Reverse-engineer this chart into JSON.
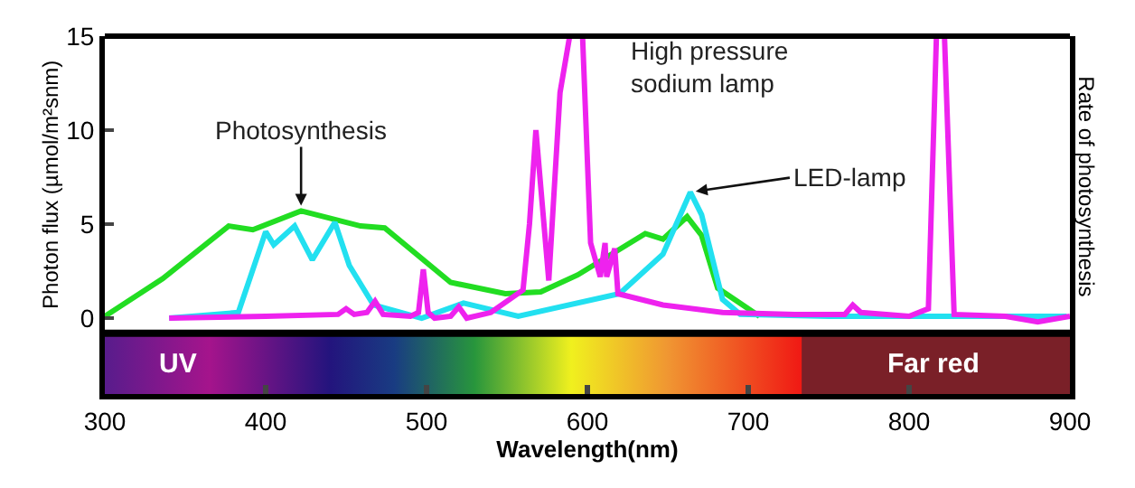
{
  "chart_data": {
    "type": "line",
    "xlabel": "Wavelength(nm)",
    "ylabel": "Photon flux (µmol/m²snm)",
    "y2label": "Rate of photosynthesis",
    "xlim": [
      300,
      900
    ],
    "xticks": [
      300,
      400,
      500,
      600,
      700,
      800,
      900
    ],
    "ylim": [
      -0.8,
      15
    ],
    "yticks": [
      0,
      5,
      10,
      15
    ],
    "grid": false,
    "legend": false,
    "marker": "none",
    "line_style": "solid",
    "series": [
      {
        "name": "Photosynthesis",
        "color": "#22dd22",
        "x": [
          300,
          336,
          377,
          392,
          422,
          459,
          474,
          515,
          549,
          571,
          594,
          636,
          647,
          662,
          671,
          681,
          707
        ],
        "values": [
          0.1,
          2.1,
          4.9,
          4.7,
          5.7,
          4.9,
          4.8,
          1.9,
          1.3,
          1.4,
          2.3,
          4.5,
          4.2,
          5.4,
          4.4,
          1.6,
          0.1
        ]
      },
      {
        "name": "LED-lamp",
        "color": "#22e0f0",
        "x": [
          340,
          383,
          400,
          405,
          418,
          429,
          443,
          452,
          467,
          497,
          523,
          557,
          620,
          647,
          664,
          671,
          684,
          695,
          750,
          800,
          898
        ],
        "values": [
          0,
          0.3,
          4.6,
          3.9,
          4.9,
          3.1,
          5.1,
          2.8,
          0.7,
          0,
          0.8,
          0.1,
          1.3,
          3.4,
          6.7,
          5.5,
          1.0,
          0.2,
          0.1,
          0.1,
          0.1
        ]
      },
      {
        "name": "High pressure\nsodium lamp",
        "color": "#ee22ee",
        "x": [
          340,
          400,
          445,
          450,
          455,
          463,
          468,
          473,
          490,
          495,
          498,
          501,
          505,
          515,
          520,
          525,
          540,
          560,
          564,
          568,
          572,
          576,
          583,
          589,
          592,
          597,
          602,
          608,
          611,
          612,
          617,
          619,
          647,
          684,
          729,
          760,
          765,
          770,
          800,
          812,
          817,
          822,
          828,
          860,
          880,
          900
        ],
        "values": [
          0,
          0.1,
          0.2,
          0.5,
          0.2,
          0.3,
          0.9,
          0.2,
          0.1,
          0.3,
          2.6,
          0.3,
          0,
          0.1,
          0.6,
          0,
          0.3,
          1.5,
          5,
          10,
          6,
          2,
          12,
          15,
          15,
          15,
          4,
          2.2,
          4.0,
          2.2,
          3.7,
          1.3,
          0.7,
          0.3,
          0.2,
          0.2,
          0.7,
          0.3,
          0.1,
          0.5,
          15,
          15,
          0.2,
          0.1,
          -0.2,
          0.1
        ]
      }
    ],
    "annotations": [
      {
        "text": "UV"
      },
      {
        "text": "Far red"
      }
    ]
  }
}
